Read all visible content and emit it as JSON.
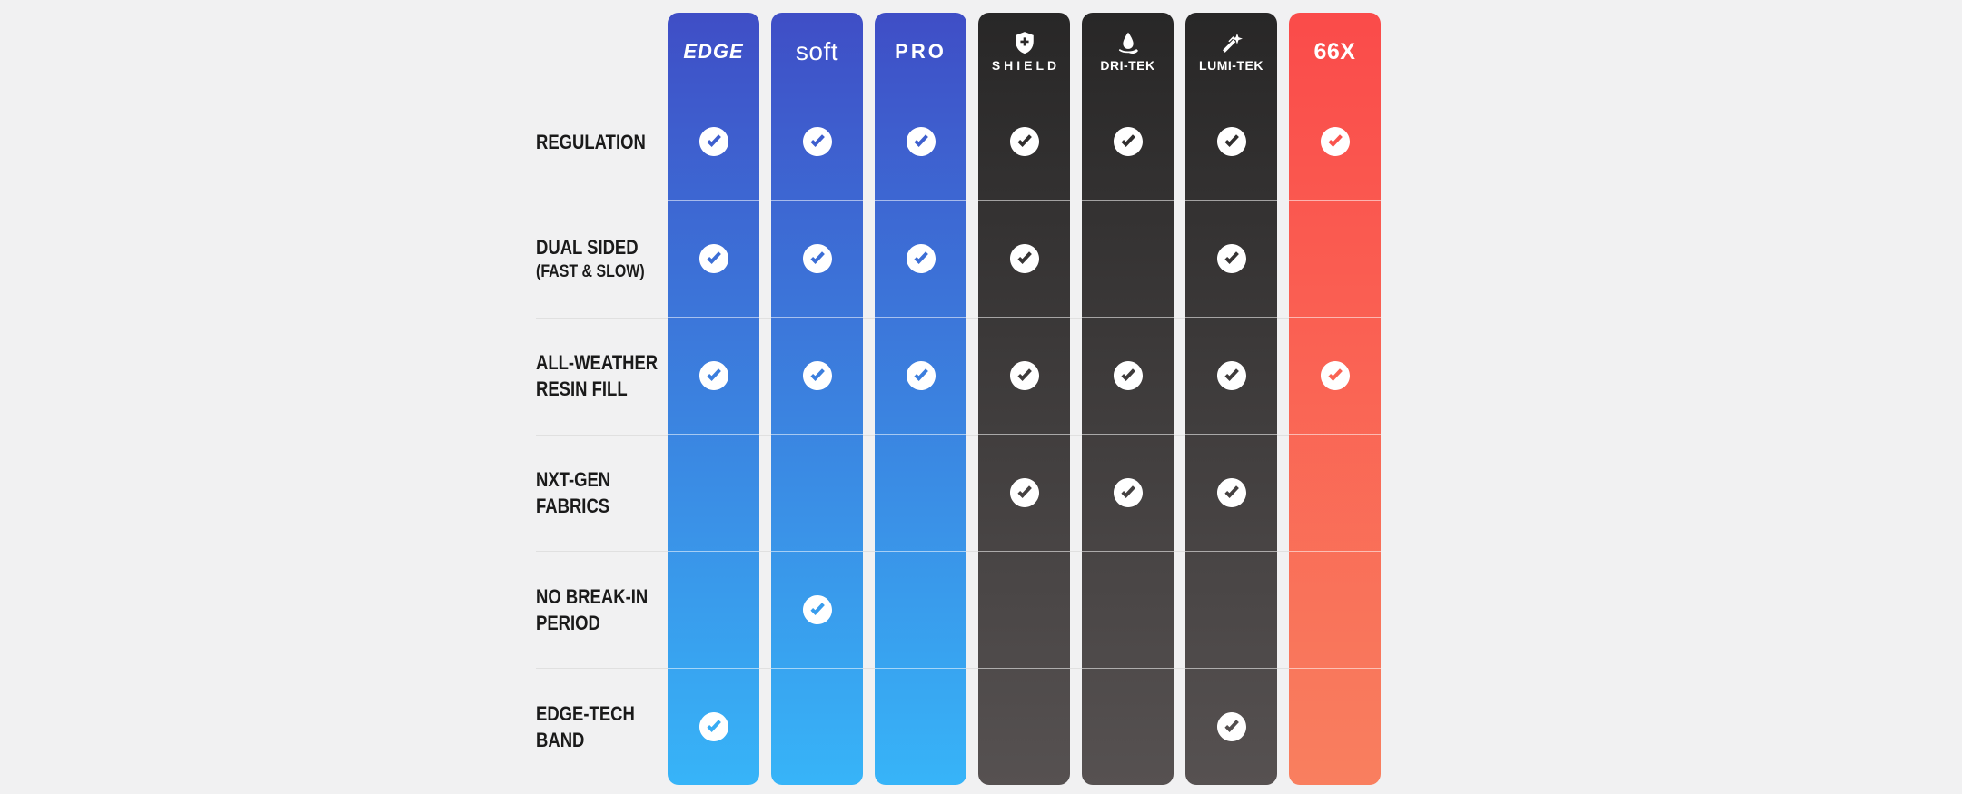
{
  "background": "#f1f1f2",
  "separator_color": "rgba(0,0,0,0.07)",
  "themes": {
    "blue": {
      "gradient_top": "#3F4EC6",
      "gradient_bottom": "#37B4F8"
    },
    "dark": {
      "gradient_top": "#282727",
      "gradient_bottom": "#565151"
    },
    "red": {
      "gradient_top": "#FA4B4A",
      "gradient_bottom": "#F97F5F"
    }
  },
  "rows": [
    {
      "lines": [
        "REGULATION"
      ],
      "second_line_small": false
    },
    {
      "lines": [
        "DUAL SIDED",
        "(FAST & SLOW)"
      ],
      "second_line_small": true
    },
    {
      "lines": [
        "ALL-WEATHER",
        "RESIN FILL"
      ],
      "second_line_small": false
    },
    {
      "lines": [
        "NXT-GEN",
        "FABRICS"
      ],
      "second_line_small": false
    },
    {
      "lines": [
        "NO BREAK-IN",
        "PERIOD"
      ],
      "second_line_small": false
    },
    {
      "lines": [
        "EDGE-TECH",
        "BAND"
      ],
      "second_line_small": false
    }
  ],
  "columns": [
    {
      "label": "EDGE",
      "style": "edge",
      "theme": "blue",
      "icon": null,
      "checks": [
        true,
        true,
        true,
        false,
        false,
        true
      ]
    },
    {
      "label": "soft",
      "style": "soft",
      "theme": "blue",
      "icon": null,
      "checks": [
        true,
        true,
        true,
        false,
        true,
        false
      ]
    },
    {
      "label": "PRO",
      "style": "pro",
      "theme": "blue",
      "icon": null,
      "checks": [
        true,
        true,
        true,
        false,
        false,
        false
      ]
    },
    {
      "label": "SHIELD",
      "style": "tek-wide",
      "theme": "dark",
      "icon": "shield-plus-icon",
      "checks": [
        true,
        true,
        true,
        true,
        false,
        false
      ]
    },
    {
      "label": "DRI-TEK",
      "style": "tek",
      "theme": "dark",
      "icon": "water-drop-icon",
      "checks": [
        true,
        false,
        true,
        true,
        false,
        false
      ]
    },
    {
      "label": "LUMI-TEK",
      "style": "tek",
      "theme": "dark",
      "icon": "shooting-star-icon",
      "checks": [
        true,
        true,
        true,
        true,
        false,
        true
      ]
    },
    {
      "label": "66X",
      "style": "x66",
      "theme": "red",
      "icon": null,
      "checks": [
        true,
        false,
        true,
        false,
        false,
        false
      ]
    }
  ]
}
